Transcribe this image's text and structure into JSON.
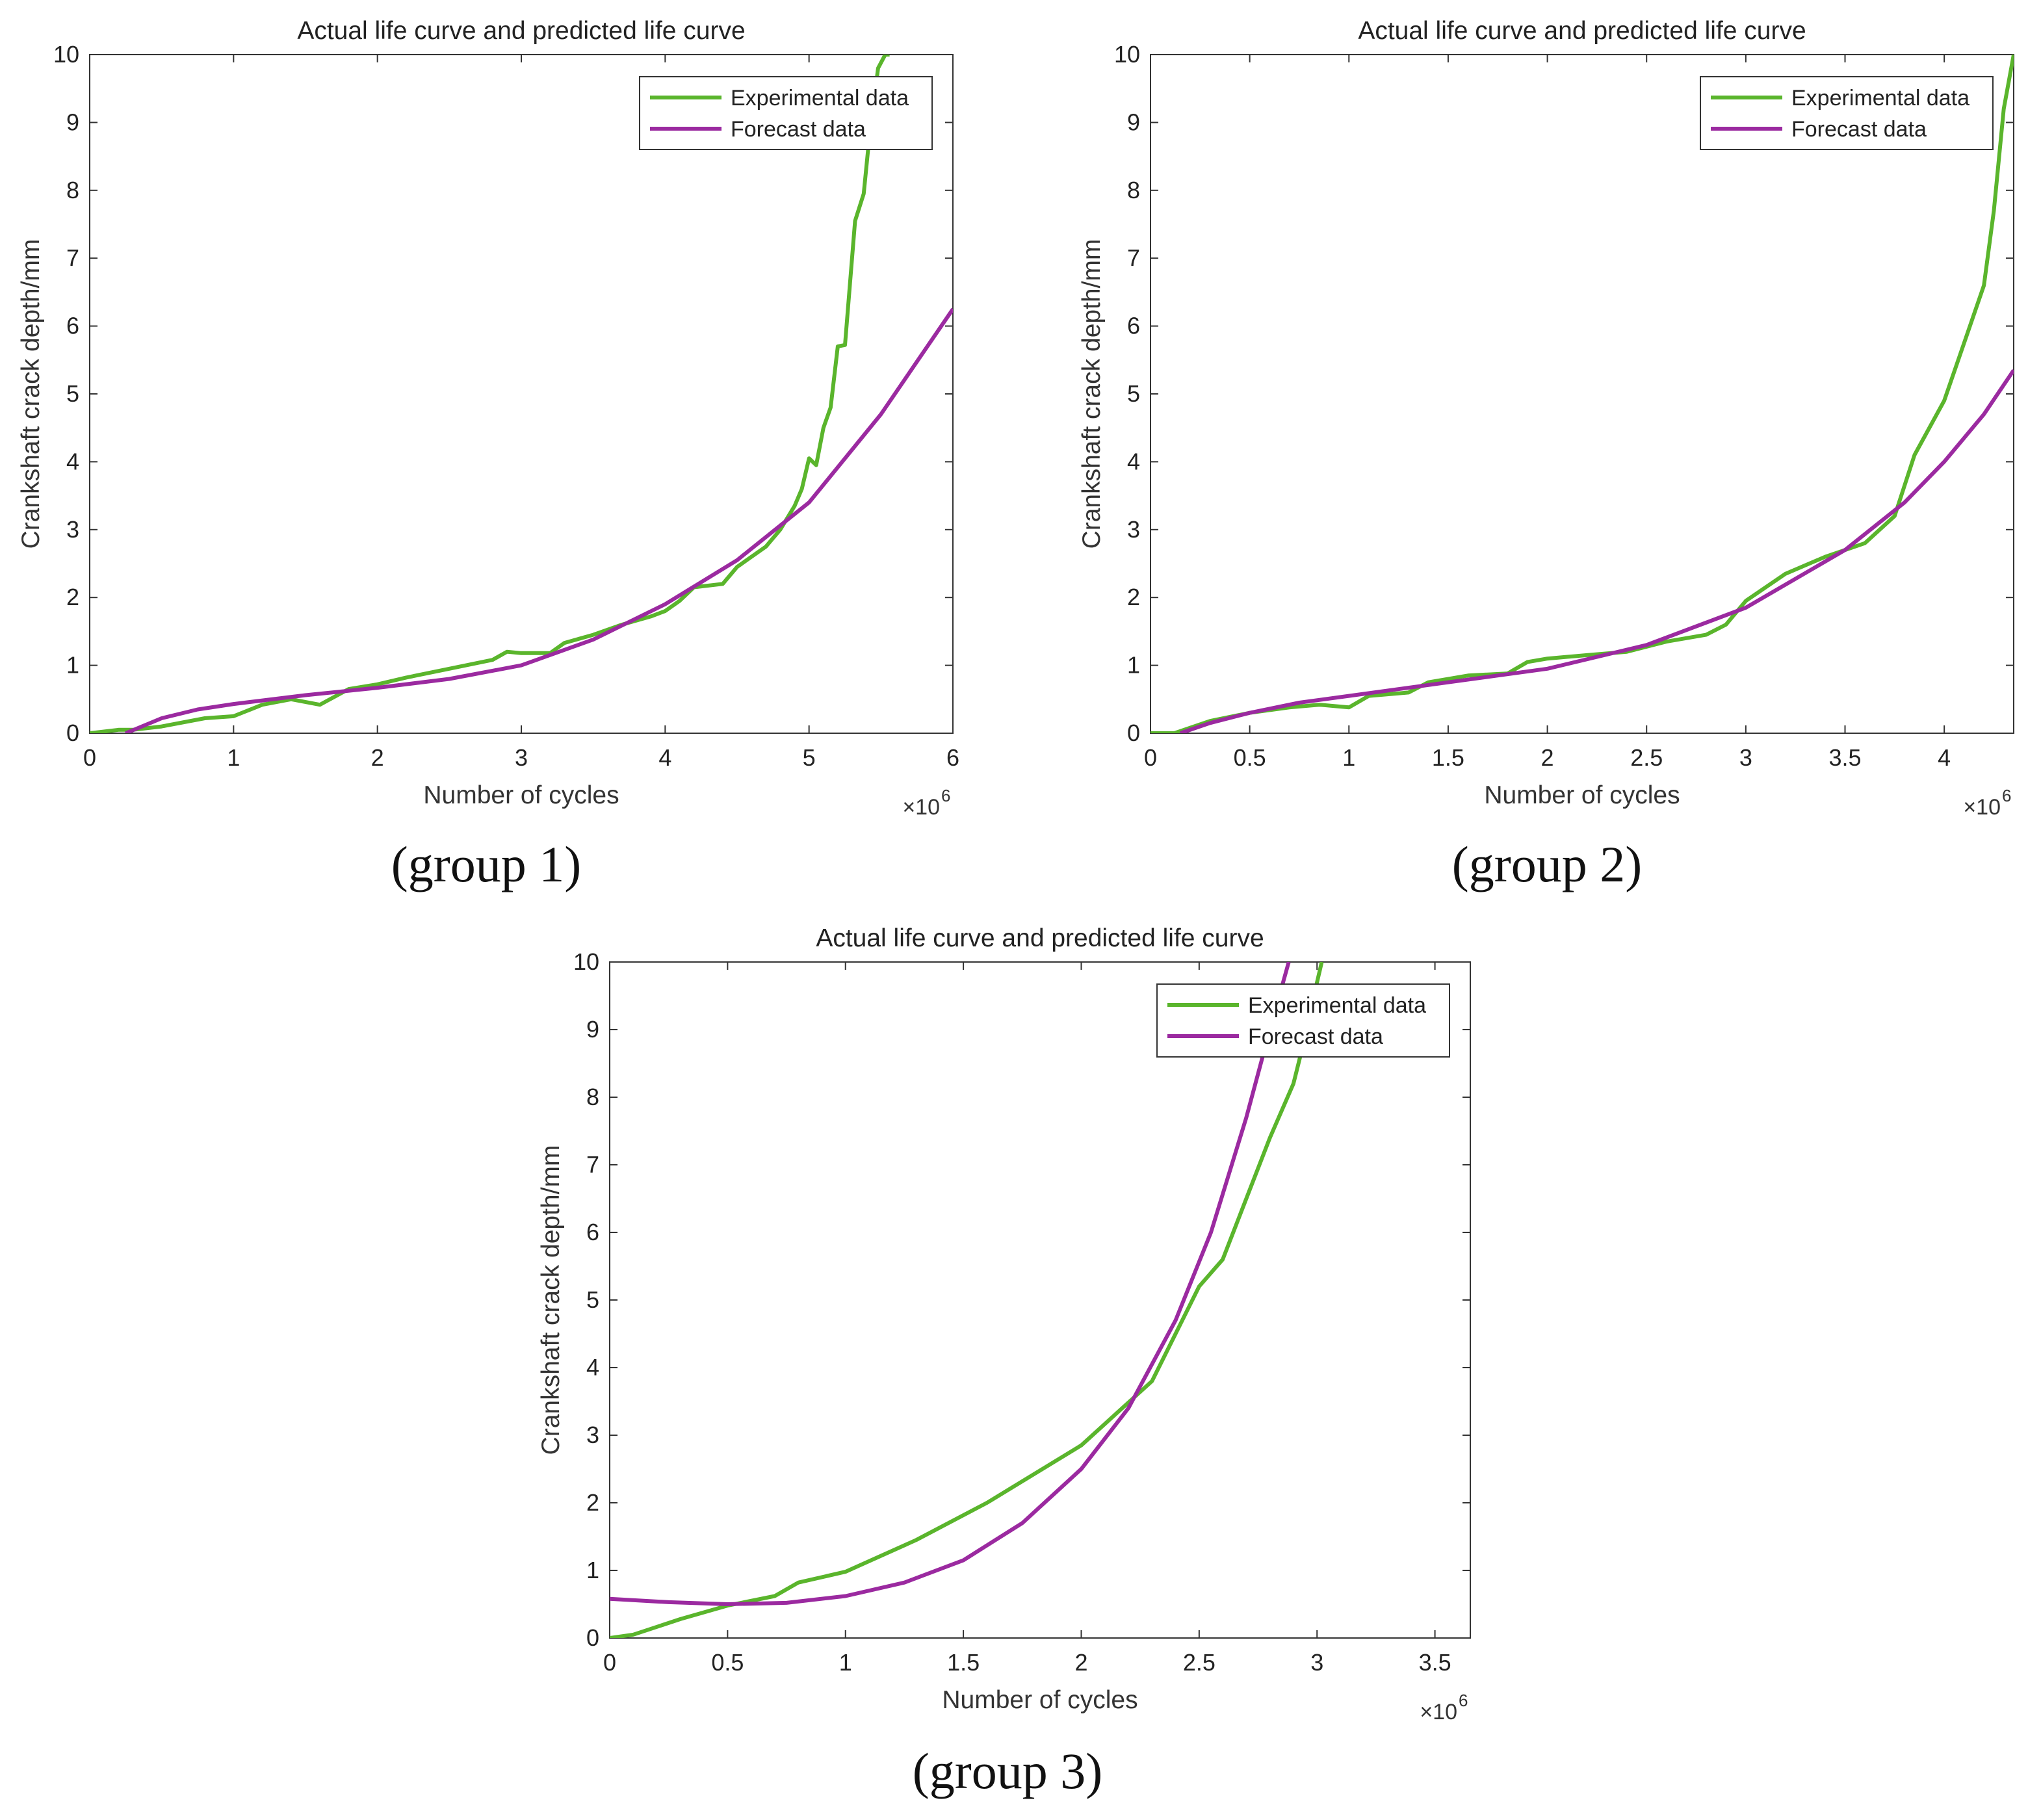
{
  "colors": {
    "experimental": "#5ab52c",
    "forecast": "#9b2aa0",
    "axis": "#333333"
  },
  "captions": [
    "(group 1)",
    "(group 2)",
    "(group 3)"
  ],
  "chart_data": [
    {
      "type": "line",
      "title": "Actual life curve and predicted life curve",
      "xlabel": "Number of cycles",
      "ylabel": "Crankshaft crack depth/mm",
      "x_multiplier": "×10",
      "x_multiplier_exp": "6",
      "xlim": [
        0,
        6
      ],
      "ylim": [
        0,
        10
      ],
      "xticks": [
        0,
        1,
        2,
        3,
        4,
        5,
        6
      ],
      "xtick_labels": [
        "0",
        "1",
        "2",
        "3",
        "4",
        "5",
        "6"
      ],
      "yticks": [
        0,
        1,
        2,
        3,
        4,
        5,
        6,
        7,
        8,
        9,
        10
      ],
      "ytick_labels": [
        "0",
        "1",
        "2",
        "3",
        "4",
        "5",
        "6",
        "7",
        "8",
        "9",
        "10"
      ],
      "legend": [
        "Experimental data",
        "Forecast data"
      ],
      "series": [
        {
          "name": "Experimental data",
          "x": [
            0,
            0.2,
            0.3,
            0.5,
            0.8,
            1.0,
            1.2,
            1.4,
            1.6,
            1.8,
            2.0,
            2.2,
            2.5,
            2.8,
            2.9,
            3.0,
            3.2,
            3.3,
            3.5,
            3.7,
            3.9,
            4.0,
            4.1,
            4.2,
            4.4,
            4.5,
            4.6,
            4.7,
            4.8,
            4.9,
            4.95,
            5.0,
            5.05,
            5.1,
            5.15,
            5.2,
            5.25,
            5.28,
            5.32,
            5.38,
            5.42,
            5.48,
            5.53,
            5.56
          ],
          "y": [
            0,
            0.05,
            0.05,
            0.1,
            0.22,
            0.25,
            0.42,
            0.5,
            0.42,
            0.65,
            0.72,
            0.82,
            0.95,
            1.08,
            1.2,
            1.18,
            1.18,
            1.33,
            1.45,
            1.6,
            1.72,
            1.8,
            1.95,
            2.15,
            2.2,
            2.45,
            2.6,
            2.75,
            3.0,
            3.35,
            3.6,
            4.05,
            3.95,
            4.5,
            4.8,
            5.7,
            5.72,
            6.5,
            7.55,
            7.95,
            8.8,
            9.8,
            10.0,
            10.0
          ]
        },
        {
          "name": "Forecast data",
          "x": [
            0.25,
            0.5,
            0.75,
            1.0,
            1.5,
            2.0,
            2.5,
            3.0,
            3.5,
            4.0,
            4.5,
            5.0,
            5.5,
            6.0
          ],
          "y": [
            0,
            0.22,
            0.35,
            0.43,
            0.56,
            0.67,
            0.8,
            1.0,
            1.38,
            1.9,
            2.55,
            3.4,
            4.7,
            6.25
          ]
        }
      ]
    },
    {
      "type": "line",
      "title": "Actual life curve and predicted life curve",
      "xlabel": "Number of cycles",
      "ylabel": "Crankshaft crack depth/mm",
      "x_multiplier": "×10",
      "x_multiplier_exp": "6",
      "xlim": [
        0,
        4.35
      ],
      "ylim": [
        0,
        10
      ],
      "xticks": [
        0,
        0.5,
        1,
        1.5,
        2,
        2.5,
        3,
        3.5,
        4
      ],
      "xtick_labels": [
        "0",
        "0.5",
        "1",
        "1.5",
        "2",
        "2.5",
        "3",
        "3.5",
        "4"
      ],
      "yticks": [
        0,
        1,
        2,
        3,
        4,
        5,
        6,
        7,
        8,
        9,
        10
      ],
      "ytick_labels": [
        "0",
        "1",
        "2",
        "3",
        "4",
        "5",
        "6",
        "7",
        "8",
        "9",
        "10"
      ],
      "legend": [
        "Experimental data",
        "Forecast data"
      ],
      "series": [
        {
          "name": "Experimental data",
          "x": [
            0,
            0.12,
            0.3,
            0.5,
            0.7,
            0.85,
            1.0,
            1.1,
            1.3,
            1.4,
            1.6,
            1.8,
            1.9,
            2.0,
            2.2,
            2.4,
            2.6,
            2.8,
            2.9,
            3.0,
            3.2,
            3.4,
            3.6,
            3.75,
            3.85,
            4.0,
            4.1,
            4.2,
            4.25,
            4.3,
            4.35
          ],
          "y": [
            0,
            0,
            0.18,
            0.3,
            0.38,
            0.42,
            0.38,
            0.55,
            0.6,
            0.75,
            0.85,
            0.88,
            1.05,
            1.1,
            1.15,
            1.2,
            1.35,
            1.45,
            1.6,
            1.95,
            2.35,
            2.6,
            2.8,
            3.2,
            4.1,
            4.9,
            5.75,
            6.6,
            7.7,
            9.2,
            10.0
          ]
        },
        {
          "name": "Forecast data",
          "x": [
            0.15,
            0.3,
            0.5,
            0.75,
            1.0,
            1.5,
            2.0,
            2.5,
            3.0,
            3.5,
            3.8,
            4.0,
            4.2,
            4.35
          ],
          "y": [
            0,
            0.15,
            0.3,
            0.45,
            0.55,
            0.75,
            0.95,
            1.3,
            1.85,
            2.7,
            3.4,
            4.0,
            4.7,
            5.35
          ]
        }
      ]
    },
    {
      "type": "line",
      "title": "Actual life curve and predicted life curve",
      "xlabel": "Number of cycles",
      "ylabel": "Crankshaft crack depth/mm",
      "x_multiplier": "×10",
      "x_multiplier_exp": "6",
      "xlim": [
        0,
        3.65
      ],
      "ylim": [
        0,
        10
      ],
      "xticks": [
        0,
        0.5,
        1,
        1.5,
        2,
        2.5,
        3,
        3.5
      ],
      "xtick_labels": [
        "0",
        "0.5",
        "1",
        "1.5",
        "2",
        "2.5",
        "3",
        "3.5"
      ],
      "yticks": [
        0,
        1,
        2,
        3,
        4,
        5,
        6,
        7,
        8,
        9,
        10
      ],
      "ytick_labels": [
        "0",
        "1",
        "2",
        "3",
        "4",
        "5",
        "6",
        "7",
        "8",
        "9",
        "10"
      ],
      "legend": [
        "Experimental data",
        "Forecast data"
      ],
      "series": [
        {
          "name": "Experimental data",
          "x": [
            0,
            0.1,
            0.3,
            0.5,
            0.7,
            0.8,
            1.0,
            1.3,
            1.6,
            2.0,
            2.3,
            2.5,
            2.6,
            2.7,
            2.8,
            2.9,
            2.95,
            3.0,
            3.02
          ],
          "y": [
            0,
            0.05,
            0.28,
            0.48,
            0.62,
            0.82,
            0.98,
            1.45,
            2.0,
            2.85,
            3.8,
            5.2,
            5.6,
            6.5,
            7.4,
            8.2,
            8.9,
            9.7,
            10.0
          ]
        },
        {
          "name": "Forecast data",
          "x": [
            0,
            0.25,
            0.5,
            0.75,
            1.0,
            1.25,
            1.5,
            1.75,
            2.0,
            2.2,
            2.4,
            2.55,
            2.7,
            2.8,
            2.88
          ],
          "y": [
            0.58,
            0.53,
            0.5,
            0.52,
            0.62,
            0.82,
            1.15,
            1.7,
            2.5,
            3.4,
            4.7,
            6.0,
            7.7,
            9.0,
            10.0
          ]
        }
      ]
    }
  ]
}
